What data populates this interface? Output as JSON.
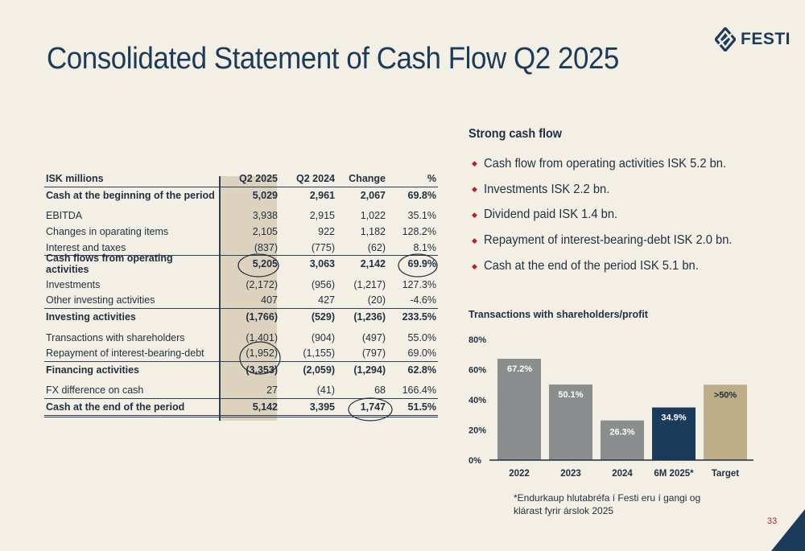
{
  "title": "Consolidated Statement of Cash Flow Q2 2025",
  "logo_text": "FESTI",
  "table": {
    "headers": [
      "ISK millions",
      "Q2 2025",
      "Q2 2024",
      "Change",
      "%"
    ],
    "rows": [
      {
        "label": "Cash at the beginning of the period",
        "q2_2025": "5,029",
        "q2_2024": "2,961",
        "change": "2,067",
        "pct": "69.8%"
      },
      {
        "label": "EBITDA",
        "q2_2025": "3,938",
        "q2_2024": "2,915",
        "change": "1,022",
        "pct": "35.1%"
      },
      {
        "label": "Changes in oparating items",
        "q2_2025": "2,105",
        "q2_2024": "922",
        "change": "1,182",
        "pct": "128.2%"
      },
      {
        "label": "Interest and taxes",
        "q2_2025": "(837)",
        "q2_2024": "(775)",
        "change": "(62)",
        "pct": "8.1%"
      },
      {
        "label": "Cash flows from operating activities",
        "q2_2025": "5,205",
        "q2_2024": "3,063",
        "change": "2,142",
        "pct": "69.9%"
      },
      {
        "label": "Investments",
        "q2_2025": "(2,172)",
        "q2_2024": "(956)",
        "change": "(1,217)",
        "pct": "127.3%"
      },
      {
        "label": "Other investing activities",
        "q2_2025": "407",
        "q2_2024": "427",
        "change": "(20)",
        "pct": "-4.6%"
      },
      {
        "label": "Investing activities",
        "q2_2025": "(1,766)",
        "q2_2024": "(529)",
        "change": "(1,236)",
        "pct": "233.5%"
      },
      {
        "label": "Transactions with shareholders",
        "q2_2025": "(1,401)",
        "q2_2024": "(904)",
        "change": "(497)",
        "pct": "55.0%"
      },
      {
        "label": "Repayment of interest-bearing-debt",
        "q2_2025": "(1,952)",
        "q2_2024": "(1,155)",
        "change": "(797)",
        "pct": "69.0%"
      },
      {
        "label": "Financing activities",
        "q2_2025": "(3,353)",
        "q2_2024": "(2,059)",
        "change": "(1,294)",
        "pct": "62.8%"
      },
      {
        "label": "FX difference on cash",
        "q2_2025": "27",
        "q2_2024": "(41)",
        "change": "68",
        "pct": "166.4%"
      },
      {
        "label": "Cash at the end of the period",
        "q2_2025": "5,142",
        "q2_2024": "3,395",
        "change": "1,747",
        "pct": "51.5%"
      }
    ]
  },
  "highlights": {
    "heading": "Strong cash flow",
    "bullets": [
      "Cash flow from operating activities ISK 5.2 bn.",
      "Investments ISK 2.2 bn.",
      "Dividend paid ISK 1.4 bn.",
      "Repayment of interest-bearing-debt ISK 2.0 bn.",
      "Cash at the end of the period ISK 5.1 bn."
    ]
  },
  "chart_data": {
    "type": "bar",
    "title": "Transactions with shareholders/profit",
    "categories": [
      "2022",
      "2023",
      "2024",
      "6M 2025*",
      "Target"
    ],
    "values": [
      67.2,
      50.1,
      26.3,
      34.9,
      50
    ],
    "data_labels": [
      "67.2%",
      "50.1%",
      "26.3%",
      "34.9%",
      ">50%"
    ],
    "yticks": [
      "0%",
      "20%",
      "40%",
      "60%",
      "80%"
    ],
    "ylim": [
      0,
      80
    ],
    "bar_colors": [
      "#8b8e8e",
      "#8b8e8e",
      "#8b8e8e",
      "#1a3c5a",
      "#bfad87"
    ],
    "grid": false,
    "xlabel": "",
    "ylabel": ""
  },
  "footnote": [
    "*Endurkaup hlutabréfa í Festi eru í gangi og",
    "klárast fyrir árslok 2025"
  ],
  "page_number": "33",
  "colors": {
    "navy": "#1a3c5a",
    "red": "#b0202d",
    "background": "#f4efe5",
    "band": "#ddd2bd"
  }
}
